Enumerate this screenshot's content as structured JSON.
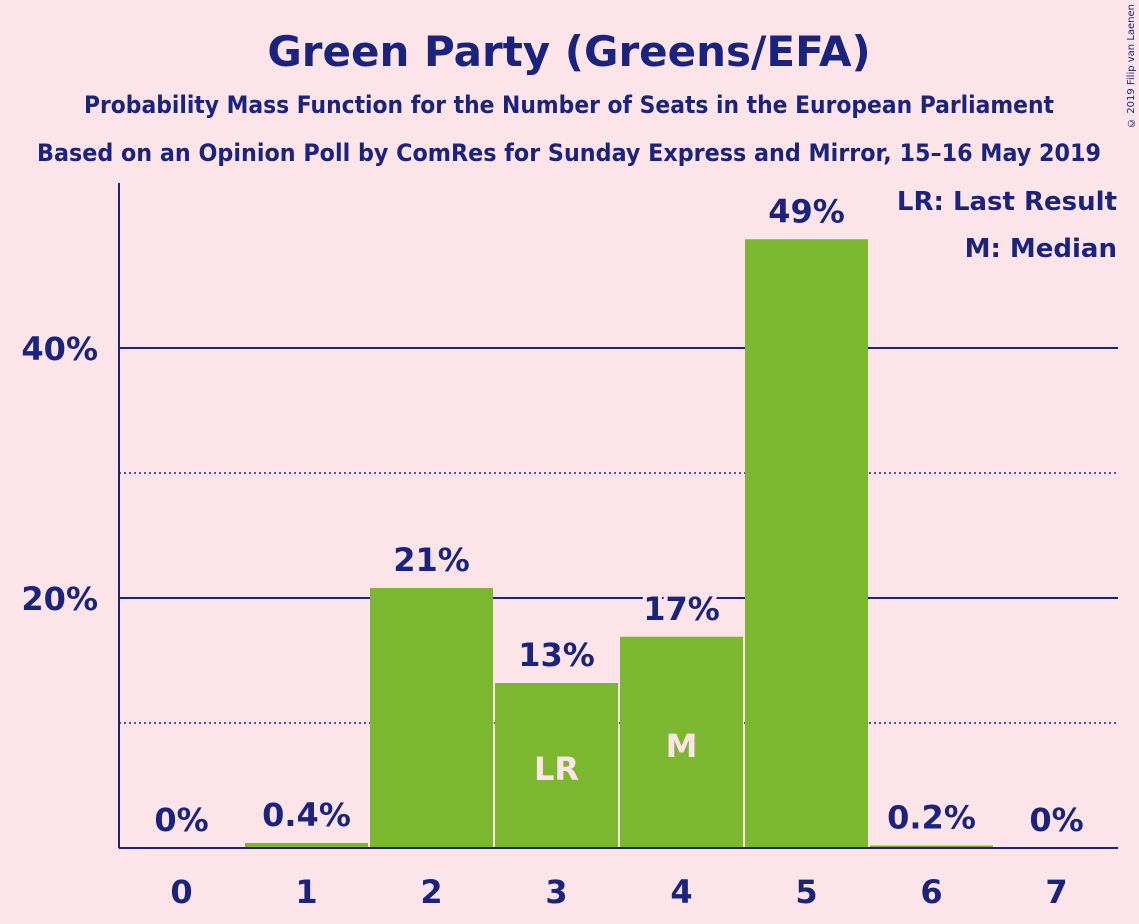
{
  "chart_data": {
    "type": "bar",
    "title": "Green Party (Greens/EFA)",
    "subtitle": "Probability Mass Function for the Number of Seats in the European Parliament",
    "subtitle2": "Based on an Opinion Poll by ComRes for Sunday Express and Mirror, 15–16 May 2019",
    "categories": [
      "0",
      "1",
      "2",
      "3",
      "4",
      "5",
      "6",
      "7"
    ],
    "values": [
      0,
      0.4,
      20.8,
      13.2,
      16.9,
      48.7,
      0.2,
      0
    ],
    "value_labels": [
      "0%",
      "0.4%",
      "21%",
      "13%",
      "17%",
      "49%",
      "0.2%",
      "0%"
    ],
    "bar_markers": [
      "",
      "",
      "",
      "LR",
      "M",
      "",
      "",
      ""
    ],
    "ylim": [
      0,
      53.2
    ],
    "yticks": [
      20,
      40
    ],
    "ytick_labels": [
      "20%",
      "40%"
    ],
    "minor_gridlines": [
      10,
      30
    ],
    "legend": [
      "LR: Last Result",
      "M: Median"
    ],
    "legend_position": "top-right",
    "bar_color": "#7cb82f",
    "text_color": "#1a237e",
    "background_color": "#fde4e8"
  },
  "copyright": "© 2019 Filip van Laenen"
}
